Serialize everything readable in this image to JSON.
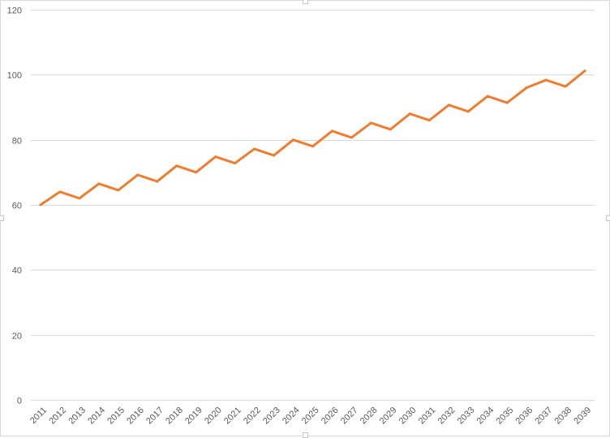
{
  "chart_data": {
    "type": "line",
    "title": "",
    "xlabel": "",
    "ylabel": "",
    "ylim": [
      0,
      120
    ],
    "yticks": [
      0,
      20,
      40,
      60,
      80,
      100,
      120
    ],
    "grid": true,
    "legend": "none",
    "colors": {
      "line": "#ED7D31",
      "grid": "#D9D9D9",
      "tick_text": "#595959"
    },
    "categories": [
      "2011",
      "2012",
      "2013",
      "2014",
      "2015",
      "2016",
      "2017",
      "2018",
      "2019",
      "2020",
      "2021",
      "2022",
      "2023",
      "2024",
      "2025",
      "2026",
      "2027",
      "2028",
      "2029",
      "2030",
      "2031",
      "2032",
      "2033",
      "2034",
      "2035",
      "2036",
      "2037",
      "2038",
      "2039"
    ],
    "series": [
      {
        "values": [
          60,
          64,
          62,
          66.5,
          64.5,
          69.2,
          67.2,
          72,
          70,
          74.8,
          72.8,
          77.2,
          75.2,
          80,
          78,
          82.7,
          80.7,
          85.2,
          83.2,
          88,
          86,
          90.7,
          88.7,
          93.4,
          91.4,
          96,
          98.4,
          96.4,
          101.2
        ]
      }
    ]
  }
}
